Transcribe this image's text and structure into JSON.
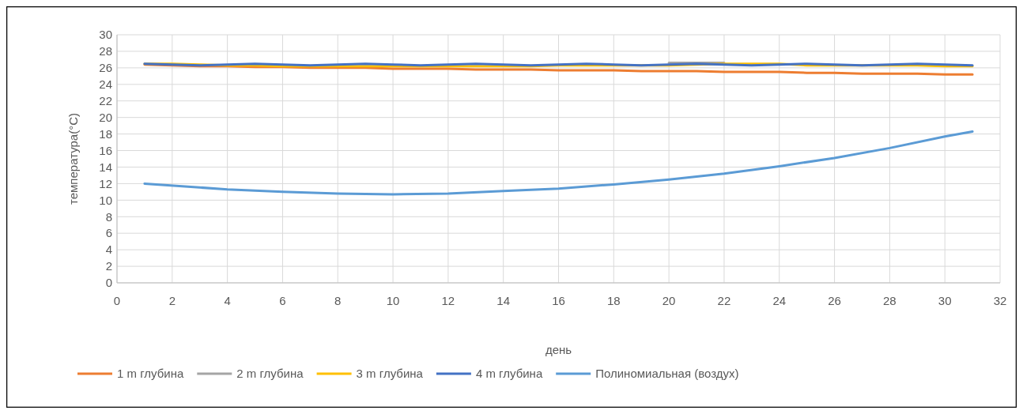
{
  "chart_data": {
    "type": "line",
    "xlabel": "день",
    "ylabel": "температура(°C)",
    "xlim": [
      0,
      32
    ],
    "xticks": [
      0,
      2,
      4,
      6,
      8,
      10,
      12,
      14,
      16,
      18,
      20,
      22,
      24,
      26,
      28,
      30,
      32
    ],
    "ylim": [
      0,
      30
    ],
    "yticks": [
      0,
      2,
      4,
      6,
      8,
      10,
      12,
      14,
      16,
      18,
      20,
      22,
      24,
      26,
      28,
      30
    ],
    "grid": true,
    "legend": "bottom",
    "x": [
      1,
      2,
      3,
      4,
      5,
      6,
      7,
      8,
      9,
      10,
      11,
      12,
      13,
      14,
      15,
      16,
      17,
      18,
      19,
      20,
      21,
      22,
      23,
      24,
      25,
      26,
      27,
      28,
      29,
      30,
      31
    ],
    "series": [
      {
        "name": "1 m глубина",
        "color": "#ed7d31",
        "values": [
          26.4,
          26.3,
          26.2,
          26.2,
          26.1,
          26.1,
          26.0,
          26.0,
          26.0,
          25.9,
          25.9,
          25.9,
          25.8,
          25.8,
          25.8,
          25.7,
          25.7,
          25.7,
          25.6,
          25.6,
          25.6,
          25.5,
          25.5,
          25.5,
          25.4,
          25.4,
          25.3,
          25.3,
          25.3,
          25.2,
          25.2
        ]
      },
      {
        "name": "2 m глубина",
        "color": "#a5a5a5",
        "values": [
          null,
          null,
          null,
          null,
          null,
          null,
          null,
          null,
          null,
          null,
          null,
          null,
          null,
          null,
          null,
          null,
          null,
          null,
          null,
          26.6,
          26.6,
          26.6,
          null,
          null,
          null,
          null,
          null,
          null,
          null,
          null,
          null
        ]
      },
      {
        "name": "3 m глубина",
        "color": "#ffc000",
        "values": [
          26.5,
          26.5,
          26.4,
          26.3,
          26.3,
          26.2,
          26.2,
          26.2,
          26.2,
          26.2,
          26.2,
          26.2,
          26.2,
          26.2,
          26.2,
          26.3,
          26.3,
          26.3,
          26.3,
          26.3,
          26.4,
          26.5,
          26.5,
          26.5,
          26.3,
          26.3,
          26.3,
          26.3,
          26.3,
          26.2,
          26.2
        ]
      },
      {
        "name": "4 m глубина",
        "color": "#4472c4",
        "values": [
          26.5,
          26.4,
          26.3,
          26.4,
          26.5,
          26.4,
          26.3,
          26.4,
          26.5,
          26.4,
          26.3,
          26.4,
          26.5,
          26.4,
          26.3,
          26.4,
          26.5,
          26.4,
          26.3,
          26.4,
          26.5,
          26.4,
          26.3,
          26.4,
          26.5,
          26.4,
          26.3,
          26.4,
          26.5,
          26.4,
          26.3
        ]
      },
      {
        "name": "Полиномиальная (воздух)",
        "color": "#5b9bd5",
        "x": [
          1,
          4,
          6,
          8,
          10,
          12,
          14,
          16,
          18,
          20,
          22,
          24,
          26,
          28,
          30,
          31
        ],
        "values": [
          12.0,
          11.3,
          11.0,
          10.8,
          10.7,
          10.8,
          11.1,
          11.4,
          11.9,
          12.5,
          13.2,
          14.1,
          15.1,
          16.3,
          17.7,
          18.3
        ]
      }
    ]
  }
}
